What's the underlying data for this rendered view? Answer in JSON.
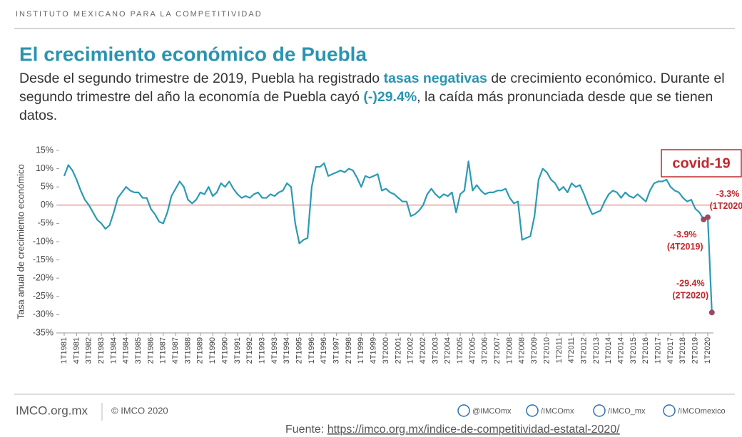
{
  "header": "INSTITUTO MEXICANO PARA LA COMPETITIVIDAD",
  "subtitle_parts": [
    "Desde el segundo trimestre de 2019, Puebla ha registrado ",
    "tasas negativas",
    " de crecimiento económico. Durante el segundo trimestre del año la economía de Puebla cayó ",
    "(-)29.4%",
    ", la caída más pronunciada desde que se tienen datos."
  ],
  "chart_data": {
    "type": "line",
    "title": "El crecimiento económico de Puebla",
    "y_label": "Tasa anual de crecimiento económico",
    "annotation": "covid-19",
    "categories": [
      "1T1981",
      null,
      null,
      "4T1981",
      null,
      null,
      "3T1982",
      null,
      null,
      "2T1983",
      null,
      null,
      "1T1984",
      null,
      null,
      "4T1984",
      null,
      null,
      "3T1985",
      null,
      null,
      "2T1986",
      null,
      null,
      "1T1987",
      null,
      null,
      "4T1987",
      null,
      null,
      "3T1988",
      null,
      null,
      "2T1989",
      null,
      null,
      "1T1990",
      null,
      null,
      "4T1990",
      null,
      null,
      "3T1991",
      null,
      null,
      "2T1992",
      null,
      null,
      "1T1993",
      null,
      null,
      "4T1993",
      null,
      null,
      "3T1994",
      null,
      null,
      "2T1995",
      null,
      null,
      "1T1996",
      null,
      null,
      "4T1996",
      null,
      null,
      "3T1997",
      null,
      null,
      "2T1998",
      null,
      null,
      "1T1999",
      null,
      null,
      "4T1999",
      null,
      null,
      "3T2000",
      null,
      null,
      "2T2001",
      null,
      null,
      "1T2002",
      null,
      null,
      "4T2002",
      null,
      null,
      "3T2003",
      null,
      null,
      "2T2004",
      null,
      null,
      "1T2005",
      null,
      null,
      "4T2005",
      null,
      null,
      "3T2006",
      null,
      null,
      "2T2007",
      null,
      null,
      "1T2008",
      null,
      null,
      "4T2008",
      null,
      null,
      "3T2009",
      null,
      null,
      "2T2010",
      null,
      null,
      "1T2011",
      null,
      null,
      "4T2011",
      null,
      null,
      "3T2012",
      null,
      null,
      "2T2013",
      null,
      null,
      "1T2014",
      null,
      null,
      "4T2014",
      null,
      null,
      "3T2015",
      null,
      null,
      "2T2016",
      null,
      null,
      "1T2017",
      null,
      null,
      "4T2017",
      null,
      null,
      "3T2018",
      null,
      null,
      "2T2019",
      null,
      null,
      "1T2020",
      null
    ],
    "values": [
      8,
      11,
      9.5,
      7,
      4,
      1.5,
      0,
      -2,
      -4,
      -5,
      -6.5,
      -5.5,
      -2,
      2,
      3.5,
      5,
      4,
      3.5,
      3.5,
      2,
      2,
      -1,
      -2.5,
      -4.5,
      -5,
      -2,
      2.5,
      4.5,
      6.5,
      5,
      1.5,
      0.5,
      1.5,
      3.5,
      3,
      5,
      2.5,
      3.5,
      6,
      5,
      6.5,
      4.5,
      3,
      2,
      2.5,
      2,
      3,
      3.5,
      2,
      2,
      3,
      2.5,
      3.5,
      4,
      6,
      5,
      -5,
      -10.5,
      -9.5,
      -9,
      5,
      10.5,
      10.5,
      11.5,
      8,
      8.5,
      9,
      9.5,
      9,
      10,
      9.5,
      7.5,
      5,
      8,
      7.5,
      8,
      8.5,
      4,
      4.5,
      3.5,
      3,
      2,
      1,
      1,
      -3,
      -2.5,
      -1.5,
      0,
      3,
      4.5,
      3,
      2,
      3,
      2.5,
      3.5,
      -2,
      3,
      4,
      12,
      4,
      5.5,
      4,
      3,
      3.5,
      3.5,
      4,
      4,
      4.5,
      2,
      0.5,
      1,
      -9.5,
      -9,
      -8.5,
      -3,
      7,
      10,
      9,
      7,
      6,
      4,
      5,
      3.5,
      6,
      5,
      5.5,
      3,
      0,
      -2.5,
      -2,
      -1.5,
      1,
      3,
      4,
      3.5,
      2,
      3.5,
      2.5,
      2,
      3,
      2,
      1,
      4,
      6,
      6.5,
      6.5,
      7,
      5,
      4,
      3.5,
      2,
      1,
      1.5,
      -1,
      -2,
      -3.9,
      -3.3,
      -29.4
    ],
    "value_labels": [
      null,
      null,
      null,
      null,
      null,
      null,
      null,
      null,
      null,
      null,
      null,
      null,
      null,
      null,
      null,
      null,
      null,
      null,
      null,
      null,
      null,
      null,
      null,
      null,
      null,
      null,
      null,
      null,
      null,
      null,
      null,
      null,
      null,
      null,
      null,
      null,
      null,
      null,
      null,
      null,
      null,
      null,
      null,
      null,
      null,
      null,
      null,
      null,
      null,
      null,
      null,
      null,
      null,
      null,
      null,
      null,
      null,
      null,
      null,
      null,
      null,
      null,
      null,
      null,
      null,
      null,
      null,
      null,
      null,
      null,
      null,
      null,
      null,
      null,
      null,
      null,
      null,
      null,
      null,
      null,
      null,
      null,
      null,
      null,
      null,
      null,
      null,
      null,
      null,
      null,
      null,
      null,
      null,
      null,
      null,
      null,
      null,
      null,
      null,
      null,
      null,
      null,
      null,
      null,
      null,
      null,
      null,
      null,
      null,
      null,
      null,
      null,
      null,
      null,
      null,
      null,
      null,
      null,
      null,
      null,
      null,
      null,
      null,
      null,
      null,
      null,
      null,
      null,
      null,
      null,
      null,
      null,
      null,
      null,
      null,
      null,
      null,
      null,
      null,
      null,
      null,
      null,
      null,
      null,
      null,
      null,
      null,
      null,
      null,
      null,
      null,
      null,
      null,
      null,
      null,
      "-3.9%",
      "-3.3%",
      "-29.4%"
    ],
    "value_notes": [
      null,
      null,
      null,
      null,
      null,
      null,
      null,
      null,
      null,
      null,
      null,
      null,
      null,
      null,
      null,
      null,
      null,
      null,
      null,
      null,
      null,
      null,
      null,
      null,
      null,
      null,
      null,
      null,
      null,
      null,
      null,
      null,
      null,
      null,
      null,
      null,
      null,
      null,
      null,
      null,
      null,
      null,
      null,
      null,
      null,
      null,
      null,
      null,
      null,
      null,
      null,
      null,
      null,
      null,
      null,
      null,
      null,
      null,
      null,
      null,
      null,
      null,
      null,
      null,
      null,
      null,
      null,
      null,
      null,
      null,
      null,
      null,
      null,
      null,
      null,
      null,
      null,
      null,
      null,
      null,
      null,
      null,
      null,
      null,
      null,
      null,
      null,
      null,
      null,
      null,
      null,
      null,
      null,
      null,
      null,
      null,
      null,
      null,
      null,
      null,
      null,
      null,
      null,
      null,
      null,
      null,
      null,
      null,
      null,
      null,
      null,
      null,
      null,
      null,
      null,
      null,
      null,
      null,
      null,
      null,
      null,
      null,
      null,
      null,
      null,
      null,
      null,
      null,
      null,
      null,
      null,
      null,
      null,
      null,
      null,
      null,
      null,
      null,
      null,
      null,
      null,
      null,
      null,
      null,
      null,
      null,
      null,
      null,
      null,
      null,
      null,
      null,
      null,
      null,
      null,
      "(4T2019)",
      "(1T2020)",
      "(2T2020)"
    ],
    "color": "#2b9ab4",
    "ylim": [
      -35,
      15
    ],
    "yticks": [
      {
        "value": 15,
        "label": "15%"
      },
      {
        "value": 10,
        "label": "10%"
      },
      {
        "value": 5,
        "label": "5%"
      },
      {
        "value": 0,
        "label": "0%"
      },
      {
        "value": -5,
        "label": "-5%"
      },
      {
        "value": -10,
        "label": "-10%"
      },
      {
        "value": -15,
        "label": "-15%"
      },
      {
        "value": -20,
        "label": "-20%"
      },
      {
        "value": -25,
        "label": "-25%"
      },
      {
        "value": -30,
        "label": "-30%"
      },
      {
        "value": -35,
        "label": "-35%"
      }
    ],
    "zero_line_color": "#e06666",
    "label_color": "#c0282d"
  },
  "footer": {
    "site": "IMCO.org.mx",
    "copyright": "© IMCO 2020",
    "social": [
      "@IMCOmx",
      "/IMCOmx",
      "/IMCO_mx",
      "/IMCOmexico"
    ],
    "source_prefix": "Fuente: ",
    "source_url": "https://imco.org.mx/indice-de-competitividad-estatal-2020/"
  }
}
